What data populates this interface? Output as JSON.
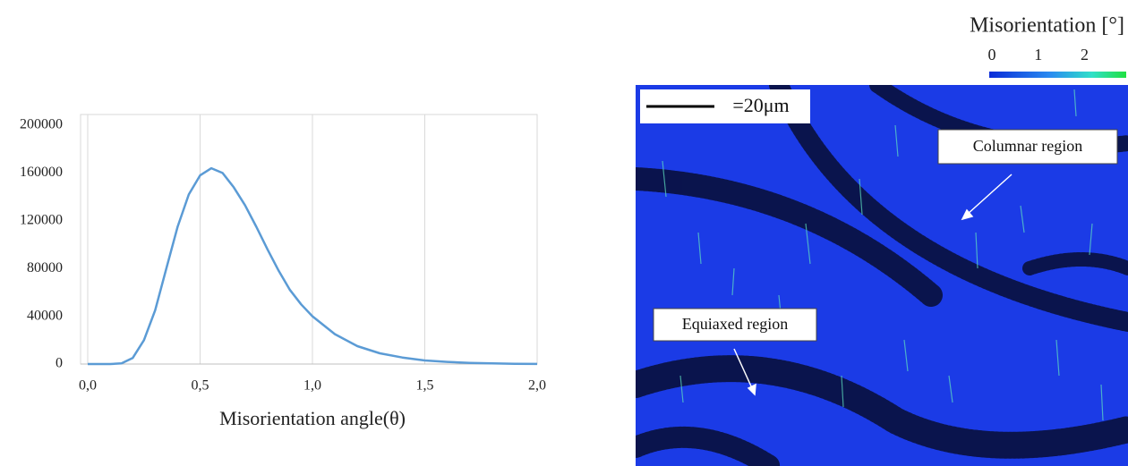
{
  "chart_data": {
    "type": "line",
    "x_label": "Misorientation angle(θ)",
    "x": [
      0.0,
      0.1,
      0.15,
      0.2,
      0.25,
      0.3,
      0.35,
      0.4,
      0.45,
      0.5,
      0.55,
      0.6,
      0.65,
      0.7,
      0.75,
      0.8,
      0.85,
      0.9,
      0.95,
      1.0,
      1.1,
      1.2,
      1.3,
      1.4,
      1.5,
      1.6,
      1.7,
      1.8,
      1.9,
      2.0
    ],
    "values": [
      0,
      0,
      500,
      5000,
      20000,
      45000,
      80000,
      115000,
      142000,
      158000,
      164000,
      160000,
      148000,
      133000,
      115000,
      96000,
      78000,
      62000,
      50000,
      40000,
      25000,
      15000,
      9000,
      5500,
      3000,
      1800,
      1000,
      500,
      200,
      100
    ],
    "color": "#5b9bd5",
    "xlim": [
      0,
      2
    ],
    "xticks": [
      {
        "value": 0,
        "label": "0,0"
      },
      {
        "value": 0.5,
        "label": "0,5"
      },
      {
        "value": 1,
        "label": "1,0"
      },
      {
        "value": 1.5,
        "label": "1,5"
      },
      {
        "value": 2,
        "label": "2,0"
      }
    ],
    "ylim": [
      0,
      200000
    ],
    "yticks": [
      0,
      40000,
      80000,
      120000,
      160000,
      200000
    ],
    "grid": true
  },
  "map": {
    "colorbar_title": "Misorientation [°]",
    "colorbar_ticks": [
      0,
      1,
      2
    ],
    "colorbar_lim": [
      0,
      2.9
    ],
    "scale_bar": "=20μm",
    "annotations": [
      "Columnar region",
      "Equiaxed region"
    ]
  }
}
